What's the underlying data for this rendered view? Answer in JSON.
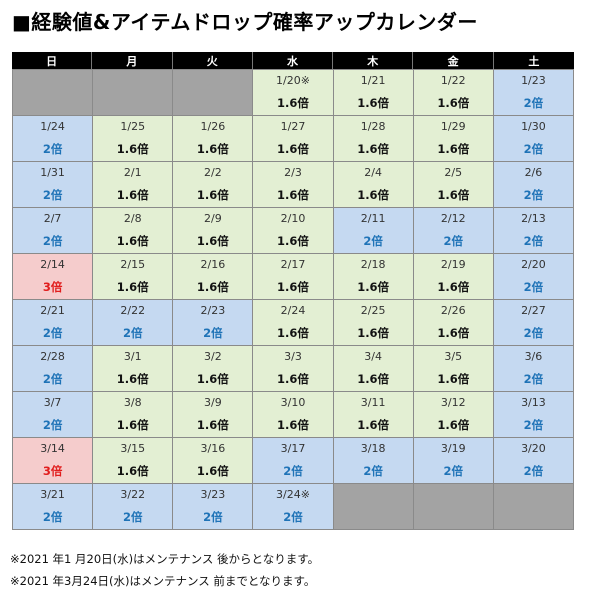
{
  "title": "■経験値&アイテムドロップ確率アップカレンダー",
  "weekdays": [
    "日",
    "月",
    "火",
    "水",
    "木",
    "金",
    "土"
  ],
  "weeks": [
    [
      {
        "date": "",
        "rate": "",
        "type": "x"
      },
      {
        "date": "",
        "rate": "",
        "type": "x"
      },
      {
        "date": "",
        "rate": "",
        "type": "x"
      },
      {
        "date": "1/20※",
        "rate": "1.6倍",
        "type": "g"
      },
      {
        "date": "1/21",
        "rate": "1.6倍",
        "type": "g"
      },
      {
        "date": "1/22",
        "rate": "1.6倍",
        "type": "g"
      },
      {
        "date": "1/23",
        "rate": "2倍",
        "type": "b"
      }
    ],
    [
      {
        "date": "1/24",
        "rate": "2倍",
        "type": "b"
      },
      {
        "date": "1/25",
        "rate": "1.6倍",
        "type": "g"
      },
      {
        "date": "1/26",
        "rate": "1.6倍",
        "type": "g"
      },
      {
        "date": "1/27",
        "rate": "1.6倍",
        "type": "g"
      },
      {
        "date": "1/28",
        "rate": "1.6倍",
        "type": "g"
      },
      {
        "date": "1/29",
        "rate": "1.6倍",
        "type": "g"
      },
      {
        "date": "1/30",
        "rate": "2倍",
        "type": "b"
      }
    ],
    [
      {
        "date": "1/31",
        "rate": "2倍",
        "type": "b"
      },
      {
        "date": "2/1",
        "rate": "1.6倍",
        "type": "g"
      },
      {
        "date": "2/2",
        "rate": "1.6倍",
        "type": "g"
      },
      {
        "date": "2/3",
        "rate": "1.6倍",
        "type": "g"
      },
      {
        "date": "2/4",
        "rate": "1.6倍",
        "type": "g"
      },
      {
        "date": "2/5",
        "rate": "1.6倍",
        "type": "g"
      },
      {
        "date": "2/6",
        "rate": "2倍",
        "type": "b"
      }
    ],
    [
      {
        "date": "2/7",
        "rate": "2倍",
        "type": "b"
      },
      {
        "date": "2/8",
        "rate": "1.6倍",
        "type": "g"
      },
      {
        "date": "2/9",
        "rate": "1.6倍",
        "type": "g"
      },
      {
        "date": "2/10",
        "rate": "1.6倍",
        "type": "g"
      },
      {
        "date": "2/11",
        "rate": "2倍",
        "type": "b"
      },
      {
        "date": "2/12",
        "rate": "2倍",
        "type": "b"
      },
      {
        "date": "2/13",
        "rate": "2倍",
        "type": "b"
      }
    ],
    [
      {
        "date": "2/14",
        "rate": "3倍",
        "type": "p"
      },
      {
        "date": "2/15",
        "rate": "1.6倍",
        "type": "g"
      },
      {
        "date": "2/16",
        "rate": "1.6倍",
        "type": "g"
      },
      {
        "date": "2/17",
        "rate": "1.6倍",
        "type": "g"
      },
      {
        "date": "2/18",
        "rate": "1.6倍",
        "type": "g"
      },
      {
        "date": "2/19",
        "rate": "1.6倍",
        "type": "g"
      },
      {
        "date": "2/20",
        "rate": "2倍",
        "type": "b"
      }
    ],
    [
      {
        "date": "2/21",
        "rate": "2倍",
        "type": "b"
      },
      {
        "date": "2/22",
        "rate": "2倍",
        "type": "b"
      },
      {
        "date": "2/23",
        "rate": "2倍",
        "type": "b"
      },
      {
        "date": "2/24",
        "rate": "1.6倍",
        "type": "g"
      },
      {
        "date": "2/25",
        "rate": "1.6倍",
        "type": "g"
      },
      {
        "date": "2/26",
        "rate": "1.6倍",
        "type": "g"
      },
      {
        "date": "2/27",
        "rate": "2倍",
        "type": "b"
      }
    ],
    [
      {
        "date": "2/28",
        "rate": "2倍",
        "type": "b"
      },
      {
        "date": "3/1",
        "rate": "1.6倍",
        "type": "g"
      },
      {
        "date": "3/2",
        "rate": "1.6倍",
        "type": "g"
      },
      {
        "date": "3/3",
        "rate": "1.6倍",
        "type": "g"
      },
      {
        "date": "3/4",
        "rate": "1.6倍",
        "type": "g"
      },
      {
        "date": "3/5",
        "rate": "1.6倍",
        "type": "g"
      },
      {
        "date": "3/6",
        "rate": "2倍",
        "type": "b"
      }
    ],
    [
      {
        "date": "3/7",
        "rate": "2倍",
        "type": "b"
      },
      {
        "date": "3/8",
        "rate": "1.6倍",
        "type": "g"
      },
      {
        "date": "3/9",
        "rate": "1.6倍",
        "type": "g"
      },
      {
        "date": "3/10",
        "rate": "1.6倍",
        "type": "g"
      },
      {
        "date": "3/11",
        "rate": "1.6倍",
        "type": "g"
      },
      {
        "date": "3/12",
        "rate": "1.6倍",
        "type": "g"
      },
      {
        "date": "3/13",
        "rate": "2倍",
        "type": "b"
      }
    ],
    [
      {
        "date": "3/14",
        "rate": "3倍",
        "type": "p"
      },
      {
        "date": "3/15",
        "rate": "1.6倍",
        "type": "g"
      },
      {
        "date": "3/16",
        "rate": "1.6倍",
        "type": "g"
      },
      {
        "date": "3/17",
        "rate": "2倍",
        "type": "b"
      },
      {
        "date": "3/18",
        "rate": "2倍",
        "type": "b"
      },
      {
        "date": "3/19",
        "rate": "2倍",
        "type": "b"
      },
      {
        "date": "3/20",
        "rate": "2倍",
        "type": "b"
      }
    ],
    [
      {
        "date": "3/21",
        "rate": "2倍",
        "type": "b"
      },
      {
        "date": "3/22",
        "rate": "2倍",
        "type": "b"
      },
      {
        "date": "3/23",
        "rate": "2倍",
        "type": "b"
      },
      {
        "date": "3/24※",
        "rate": "2倍",
        "type": "b"
      },
      {
        "date": "",
        "rate": "",
        "type": "x"
      },
      {
        "date": "",
        "rate": "",
        "type": "x"
      },
      {
        "date": "",
        "rate": "",
        "type": "x"
      }
    ]
  ],
  "notes": [
    "※2021 年1 月20日(水)はメンテナンス 後からとなります。",
    "※2021 年3月24日(水)はメンテナンス 前までとなります。"
  ],
  "colors": {
    "rate_1_6": "#e3efd3",
    "rate_2": "#c5d9f1",
    "rate_3": "#f5cccc",
    "no_event": "#a3a3a3",
    "header_bg": "#000000"
  }
}
